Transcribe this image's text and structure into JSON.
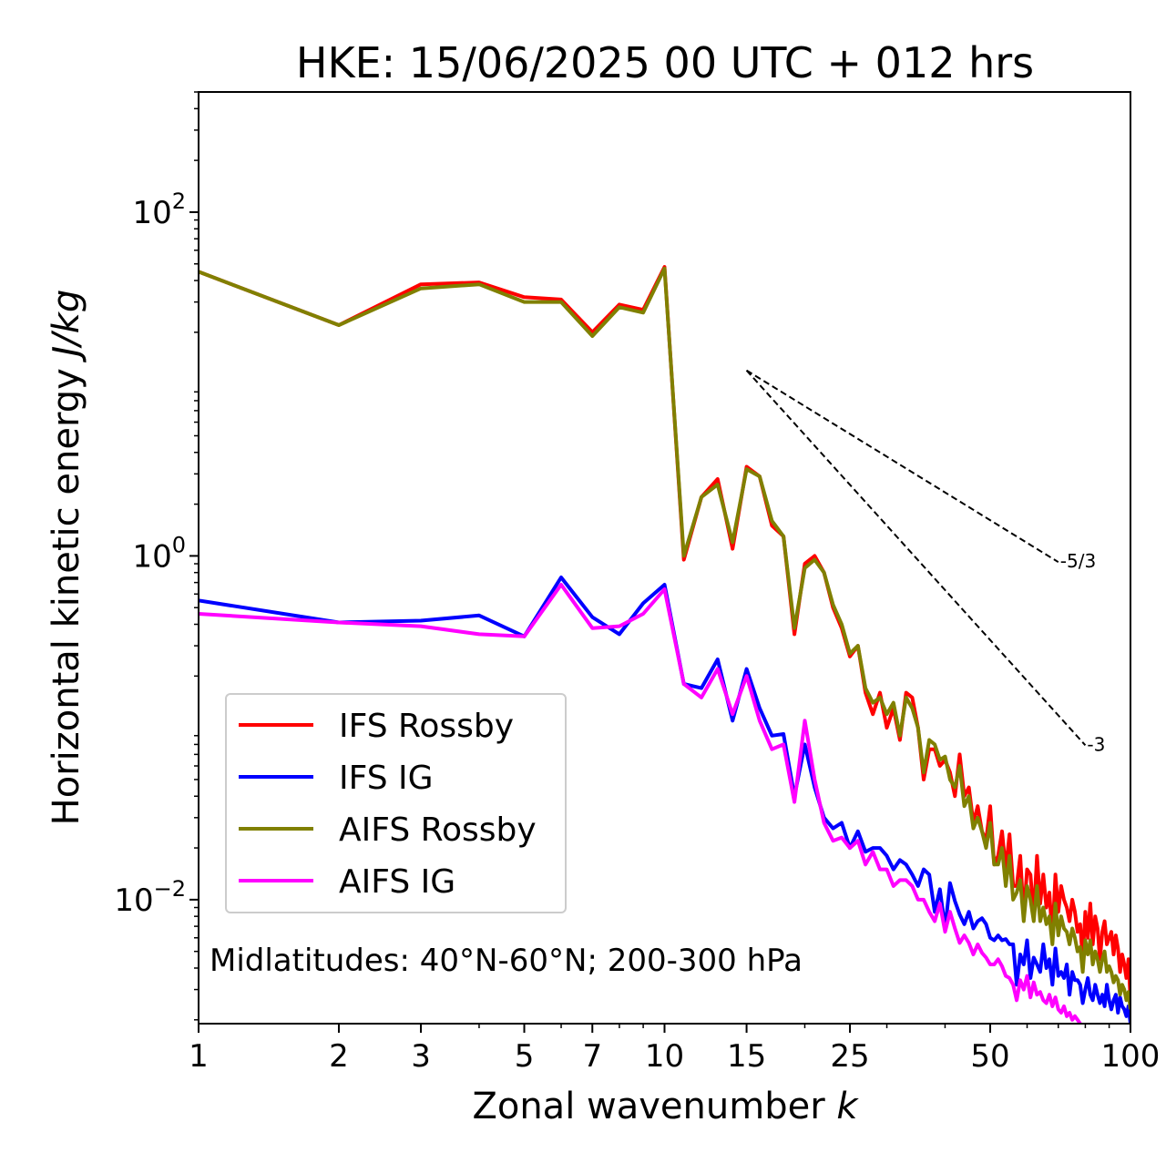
{
  "chart_data": {
    "type": "line",
    "title": "HKE: 15/06/2025 00 UTC + 012 hrs",
    "xlabel_text": "Zonal wavenumber ",
    "xlabel_var": "k",
    "ylabel_text": "Horizontal kinetic energy ",
    "ylabel_unit": "J/kg",
    "x_scale": "log",
    "y_scale": "log",
    "xlim": [
      1,
      100
    ],
    "ylim": [
      0.0019,
      500
    ],
    "x_ticks": [
      1,
      2,
      3,
      5,
      7,
      10,
      15,
      25,
      50,
      100
    ],
    "x_tick_labels": [
      "1",
      "2",
      "3",
      "5",
      "7",
      "10",
      "15",
      "25",
      "50",
      "100"
    ],
    "y_ticks": [
      100,
      1,
      0.01
    ],
    "y_tick_labels": [
      {
        "base": "10",
        "exp": "2"
      },
      {
        "base": "10",
        "exp": "0"
      },
      {
        "base": "10",
        "exp": "−2"
      }
    ],
    "grid": false,
    "legend_position": "lower-left",
    "annotation": "Midlatitudes: 40°N-60°N; 200-300 hPa",
    "reference_lines": [
      {
        "label": "-5/3",
        "slope": -1.6667,
        "x_start": 15,
        "x_end": 70,
        "y_start": 12
      },
      {
        "label": "-3",
        "slope": -3,
        "x_start": 15,
        "x_end": 80,
        "y_start": 12
      }
    ],
    "series": [
      {
        "name": "IFS Rossby",
        "color": "#ff0000",
        "x": [
          1,
          2,
          3,
          4,
          5,
          6,
          7,
          8,
          9,
          10,
          11,
          12,
          13,
          14,
          15,
          16,
          17,
          18,
          19,
          20,
          21,
          22,
          23,
          24,
          25,
          26,
          27,
          28,
          29,
          30,
          31,
          32,
          33,
          34,
          35,
          36,
          37,
          38,
          39,
          40,
          41,
          42,
          43,
          44,
          45,
          46,
          47,
          48,
          49,
          50,
          51,
          52,
          53,
          54,
          55,
          56,
          57,
          58,
          59,
          60,
          61,
          62,
          63,
          64,
          65,
          66,
          67,
          68,
          69,
          70,
          71,
          72,
          73,
          74,
          75,
          76,
          77,
          78,
          79,
          80,
          81,
          82,
          83,
          84,
          85,
          86,
          87,
          88,
          89,
          90,
          91,
          92,
          93,
          94,
          95,
          96,
          97,
          98,
          99,
          100
        ],
        "y": [
          45,
          22,
          38,
          39,
          32,
          31,
          20,
          29,
          27,
          48,
          0.95,
          2.2,
          2.8,
          1.1,
          3.3,
          2.9,
          1.5,
          1.3,
          0.35,
          0.9,
          1.0,
          0.8,
          0.5,
          0.38,
          0.26,
          0.3,
          0.16,
          0.12,
          0.16,
          0.1,
          0.13,
          0.085,
          0.16,
          0.15,
          0.1,
          0.05,
          0.075,
          0.075,
          0.06,
          0.065,
          0.055,
          0.04,
          0.07,
          0.04,
          0.045,
          0.028,
          0.035,
          0.025,
          0.022,
          0.035,
          0.016,
          0.018,
          0.025,
          0.015,
          0.024,
          0.012,
          0.012,
          0.018,
          0.008,
          0.015,
          0.014,
          0.008,
          0.018,
          0.0095,
          0.014,
          0.009,
          0.011,
          0.006,
          0.014,
          0.0085,
          0.012,
          0.01,
          0.009,
          0.0075,
          0.01,
          0.0085,
          0.0065,
          0.0072,
          0.0045,
          0.0085,
          0.006,
          0.0095,
          0.0055,
          0.008,
          0.0068,
          0.0045,
          0.0065,
          0.0075,
          0.0055,
          0.006,
          0.0065,
          0.0048,
          0.0062,
          0.0052,
          0.0038,
          0.0048,
          0.0042,
          0.0035,
          0.0045,
          0.0026
        ]
      },
      {
        "name": "IFS IG",
        "color": "#0000ff",
        "x": [
          1,
          2,
          3,
          4,
          5,
          6,
          7,
          8,
          9,
          10,
          11,
          12,
          13,
          14,
          15,
          16,
          17,
          18,
          19,
          20,
          21,
          22,
          23,
          24,
          25,
          26,
          27,
          28,
          29,
          30,
          31,
          32,
          33,
          34,
          35,
          36,
          37,
          38,
          39,
          40,
          41,
          42,
          43,
          44,
          45,
          46,
          47,
          48,
          49,
          50,
          51,
          52,
          53,
          54,
          55,
          56,
          57,
          58,
          59,
          60,
          61,
          62,
          63,
          64,
          65,
          66,
          67,
          68,
          69,
          70,
          71,
          72,
          73,
          74,
          75,
          76,
          77,
          78,
          79,
          80,
          81,
          82,
          83,
          84,
          85,
          86,
          87,
          88,
          89,
          90,
          91,
          92,
          93,
          94,
          95,
          96,
          97,
          98,
          99,
          100
        ],
        "y": [
          0.55,
          0.41,
          0.42,
          0.45,
          0.34,
          0.75,
          0.44,
          0.35,
          0.53,
          0.68,
          0.18,
          0.17,
          0.25,
          0.11,
          0.22,
          0.13,
          0.09,
          0.092,
          0.04,
          0.08,
          0.045,
          0.03,
          0.026,
          0.028,
          0.02,
          0.025,
          0.019,
          0.02,
          0.02,
          0.018,
          0.015,
          0.017,
          0.016,
          0.014,
          0.012,
          0.015,
          0.014,
          0.0085,
          0.0115,
          0.0068,
          0.0125,
          0.0098,
          0.0082,
          0.0072,
          0.0085,
          0.0068,
          0.0075,
          0.0078,
          0.0072,
          0.006,
          0.0058,
          0.0062,
          0.0058,
          0.0059,
          0.0055,
          0.0055,
          0.0032,
          0.0048,
          0.0042,
          0.0058,
          0.0035,
          0.0046,
          0.0042,
          0.0038,
          0.0055,
          0.004,
          0.0045,
          0.0032,
          0.0052,
          0.0036,
          0.0038,
          0.0035,
          0.0042,
          0.0028,
          0.0038,
          0.0034,
          0.0034,
          0.0032,
          0.0025,
          0.003,
          0.0035,
          0.0028,
          0.0026,
          0.0032,
          0.0028,
          0.0025,
          0.0028,
          0.0024,
          0.0032,
          0.0026,
          0.0023,
          0.0026,
          0.0028,
          0.0022,
          0.0027,
          0.0024,
          0.0023,
          0.0021,
          0.0024,
          0.0019
        ]
      },
      {
        "name": "AIFS Rossby",
        "color": "#808000",
        "x": [
          1,
          2,
          3,
          4,
          5,
          6,
          7,
          8,
          9,
          10,
          11,
          12,
          13,
          14,
          15,
          16,
          17,
          18,
          19,
          20,
          21,
          22,
          23,
          24,
          25,
          26,
          27,
          28,
          29,
          30,
          31,
          32,
          33,
          34,
          35,
          36,
          37,
          38,
          39,
          40,
          41,
          42,
          43,
          44,
          45,
          46,
          47,
          48,
          49,
          50,
          51,
          52,
          53,
          54,
          55,
          56,
          57,
          58,
          59,
          60,
          61,
          62,
          63,
          64,
          65,
          66,
          67,
          68,
          69,
          70,
          71,
          72,
          73,
          74,
          75,
          76,
          77,
          78,
          79,
          80,
          81,
          82,
          83,
          84,
          85,
          86,
          87,
          88,
          89,
          90,
          91,
          92,
          93,
          94,
          95,
          96,
          97,
          98,
          99,
          100
        ],
        "y": [
          45,
          22,
          36,
          38,
          30,
          30,
          19,
          28,
          26,
          47,
          1.0,
          2.2,
          2.6,
          1.2,
          3.2,
          2.9,
          1.6,
          1.3,
          0.38,
          0.85,
          0.95,
          0.8,
          0.52,
          0.4,
          0.27,
          0.3,
          0.17,
          0.14,
          0.15,
          0.12,
          0.14,
          0.09,
          0.15,
          0.13,
          0.1,
          0.055,
          0.085,
          0.08,
          0.065,
          0.068,
          0.05,
          0.045,
          0.06,
          0.035,
          0.04,
          0.026,
          0.03,
          0.025,
          0.02,
          0.028,
          0.016,
          0.016,
          0.02,
          0.012,
          0.018,
          0.01,
          0.011,
          0.013,
          0.0075,
          0.012,
          0.01,
          0.0075,
          0.012,
          0.0075,
          0.009,
          0.0072,
          0.008,
          0.0055,
          0.0095,
          0.0062,
          0.008,
          0.0068,
          0.0065,
          0.0055,
          0.0068,
          0.006,
          0.005,
          0.0053,
          0.0038,
          0.0058,
          0.0048,
          0.0058,
          0.0042,
          0.005,
          0.0045,
          0.0038,
          0.0045,
          0.005,
          0.0038,
          0.0041,
          0.0038,
          0.0033,
          0.0036,
          0.0034,
          0.0028,
          0.0032,
          0.003,
          0.0026,
          0.0029,
          0.0023
        ]
      },
      {
        "name": "AIFS IG",
        "color": "#ff00ff",
        "x": [
          1,
          2,
          3,
          4,
          5,
          6,
          7,
          8,
          9,
          10,
          11,
          12,
          13,
          14,
          15,
          16,
          17,
          18,
          19,
          20,
          21,
          22,
          23,
          24,
          25,
          26,
          27,
          28,
          29,
          30,
          31,
          32,
          33,
          34,
          35,
          36,
          37,
          38,
          39,
          40,
          41,
          42,
          43,
          44,
          45,
          46,
          47,
          48,
          49,
          50,
          51,
          52,
          53,
          54,
          55,
          56,
          57,
          58,
          59,
          60,
          61,
          62,
          63,
          64,
          65,
          66,
          67,
          68,
          69,
          70,
          71,
          72,
          73,
          74,
          75,
          76,
          77,
          78,
          79,
          80
        ],
        "y": [
          0.46,
          0.41,
          0.39,
          0.35,
          0.34,
          0.68,
          0.38,
          0.39,
          0.46,
          0.64,
          0.18,
          0.15,
          0.22,
          0.12,
          0.2,
          0.11,
          0.075,
          0.08,
          0.037,
          0.11,
          0.05,
          0.028,
          0.022,
          0.023,
          0.02,
          0.022,
          0.016,
          0.019,
          0.015,
          0.015,
          0.012,
          0.013,
          0.013,
          0.012,
          0.01,
          0.01,
          0.0085,
          0.0075,
          0.0095,
          0.0065,
          0.0085,
          0.0068,
          0.0056,
          0.0062,
          0.0056,
          0.0048,
          0.0055,
          0.0049,
          0.0046,
          0.0042,
          0.0042,
          0.0045,
          0.0041,
          0.0036,
          0.0035,
          0.0032,
          0.0026,
          0.0034,
          0.003,
          0.0036,
          0.0027,
          0.0033,
          0.0028,
          0.0029,
          0.0026,
          0.0025,
          0.0028,
          0.0024,
          0.0027,
          0.0023,
          0.0022,
          0.0024,
          0.0021,
          0.0022,
          0.002,
          0.0021,
          0.002,
          0.0019,
          0.0018,
          0.0017
        ]
      }
    ]
  }
}
